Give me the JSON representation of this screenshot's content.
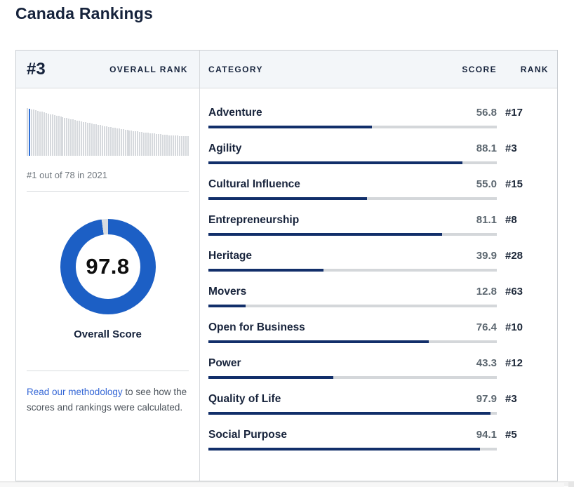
{
  "title": "Canada Rankings",
  "overall": {
    "rank": "#3",
    "rank_label": "OVERALL RANK",
    "history_caption": "#1 out of 78 in 2021",
    "score": "97.8",
    "score_label": "Overall Score"
  },
  "methodology": {
    "link_text": "Read our methodology",
    "rest_text": " to see how the scores and rankings were calculated."
  },
  "table": {
    "headers": {
      "category": "CATEGORY",
      "score": "SCORE",
      "rank": "RANK"
    },
    "rows": [
      {
        "category": "Adventure",
        "score": "56.8",
        "rank": "#17"
      },
      {
        "category": "Agility",
        "score": "88.1",
        "rank": "#3"
      },
      {
        "category": "Cultural Influence",
        "score": "55.0",
        "rank": "#15"
      },
      {
        "category": "Entrepreneurship",
        "score": "81.1",
        "rank": "#8"
      },
      {
        "category": "Heritage",
        "score": "39.9",
        "rank": "#28"
      },
      {
        "category": "Movers",
        "score": "12.8",
        "rank": "#63"
      },
      {
        "category": "Open for Business",
        "score": "76.4",
        "rank": "#10"
      },
      {
        "category": "Power",
        "score": "43.3",
        "rank": "#12"
      },
      {
        "category": "Quality of Life",
        "score": "97.9",
        "rank": "#3"
      },
      {
        "category": "Social Purpose",
        "score": "94.1",
        "rank": "#5"
      }
    ]
  },
  "rank_history_chart": {
    "bar_count": 78,
    "highlight_index": 1,
    "bar_color": "#d6d9dd",
    "highlight_color": "#2e6fd6"
  },
  "colors": {
    "navy_text": "#16233c",
    "bar_fill": "#122f6a",
    "bar_track": "#d4d7da",
    "donut_blue": "#1c5fc5",
    "donut_gap": "#d8dce0",
    "link_blue": "#3567d6",
    "score_gray": "#5c6770",
    "header_bg": "#f3f6f9"
  },
  "chart_data": [
    {
      "type": "pie",
      "title": "Overall Score donut gauge",
      "categories": [
        "Score",
        "Remainder"
      ],
      "values": [
        97.8,
        2.2
      ],
      "center_label": "97.8",
      "caption": "Overall Score",
      "colors": [
        "#1c5fc5",
        "#d8dce0"
      ]
    },
    {
      "type": "bar",
      "title": "Rank distribution sparkline (78 countries, descending scores)",
      "caption": "#1 out of 78 in 2021",
      "bar_count": 78,
      "highlighted_bar_position": 2,
      "ylim": [
        0,
        100
      ],
      "note": "monotonically decreasing gray bars, one blue highlighted bar near left"
    },
    {
      "type": "bar",
      "title": "Category scores",
      "categories": [
        "Adventure",
        "Agility",
        "Cultural Influence",
        "Entrepreneurship",
        "Heritage",
        "Movers",
        "Open for Business",
        "Power",
        "Quality of Life",
        "Social Purpose"
      ],
      "values": [
        56.8,
        88.1,
        55.0,
        81.1,
        39.9,
        12.8,
        76.4,
        43.3,
        97.9,
        94.1
      ],
      "ranks": [
        "#17",
        "#3",
        "#15",
        "#8",
        "#28",
        "#63",
        "#10",
        "#12",
        "#3",
        "#5"
      ],
      "xlim": [
        0,
        100
      ]
    }
  ]
}
